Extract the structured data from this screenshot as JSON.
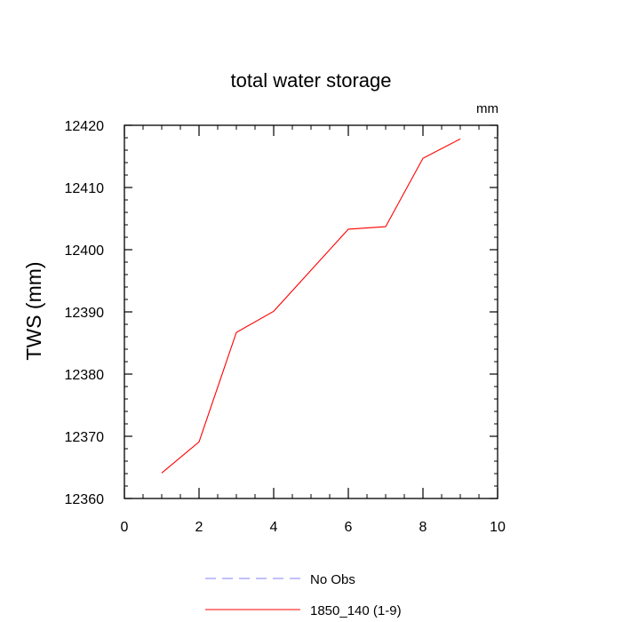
{
  "chart_data": {
    "type": "line",
    "title": "total water storage",
    "units_label": "mm",
    "xlabel": "",
    "ylabel": "TWS  (mm)",
    "xlim": [
      0,
      10
    ],
    "ylim": [
      12360,
      12420
    ],
    "xticks": [
      0,
      2,
      4,
      6,
      8,
      10
    ],
    "yticks": [
      12360,
      12370,
      12380,
      12390,
      12400,
      12410,
      12420
    ],
    "grid": false,
    "legend_position": "bottom",
    "series": [
      {
        "name": "No Obs",
        "color": "#8080ff",
        "style": "dashed",
        "x": [],
        "y": []
      },
      {
        "name": "1850_140 (1-9)",
        "color": "#ff0000",
        "style": "solid",
        "x": [
          1,
          2,
          3,
          4,
          5,
          6,
          7,
          8,
          9
        ],
        "y": [
          12364.1,
          12369.1,
          12386.7,
          12390.1,
          12396.7,
          12403.3,
          12403.7,
          12414.7,
          12417.8
        ]
      }
    ]
  }
}
